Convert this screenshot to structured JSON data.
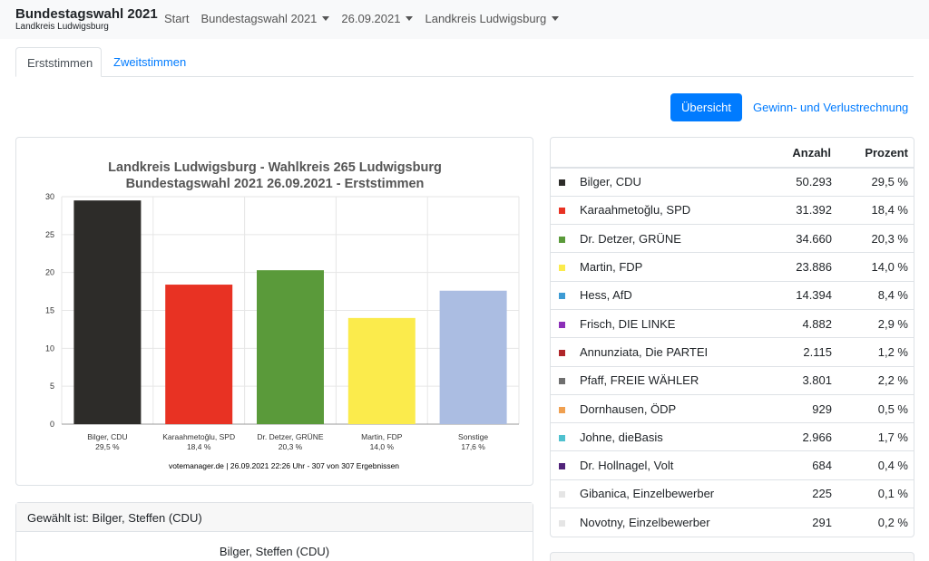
{
  "navbar": {
    "title": "Bundestagswahl 2021",
    "subtitle": "Landkreis Ludwigsburg",
    "items": [
      {
        "label": "Start",
        "dropdown": false
      },
      {
        "label": "Bundestagswahl 2021",
        "dropdown": true
      },
      {
        "label": "26.09.2021",
        "dropdown": true
      },
      {
        "label": "Landkreis Ludwigsburg",
        "dropdown": true
      }
    ]
  },
  "tabs": {
    "active": "Erststimmen",
    "other": "Zweitstimmen"
  },
  "actions": {
    "overview": "Übersicht",
    "gainloss": "Gewinn- und Verlustrechnung"
  },
  "chart_data": {
    "type": "bar",
    "title_line1": "Landkreis Ludwigsburg - Wahlkreis 265 Ludwigsburg",
    "title_line2": "Bundestagswahl 2021 26.09.2021  - Erststimmen",
    "categories": [
      "Bilger, CDU",
      "Karaahmetoğlu, SPD",
      "Dr. Detzer, GRÜNE",
      "Martin, FDP",
      "Sonstige"
    ],
    "value_labels": [
      "29,5 %",
      "18,4 %",
      "20,3 %",
      "14,0 %",
      "17,6 %"
    ],
    "values": [
      29.5,
      18.4,
      20.3,
      14.0,
      17.6
    ],
    "colors": [
      "#2d2c29",
      "#e83223",
      "#5a9a3a",
      "#fbeb4c",
      "#abbde2"
    ],
    "ylim": [
      0,
      30
    ],
    "yticks": [
      0,
      5,
      10,
      15,
      20,
      25,
      30
    ],
    "grid": true,
    "footer": "votemanager.de | 26.09.2021 22:26 Uhr - 307 von 307 Ergebnissen"
  },
  "elected": {
    "header": "Gewählt ist: Bilger, Steffen (CDU)",
    "name": "Bilger, Steffen (CDU)"
  },
  "results": {
    "headers": {
      "anzahl": "Anzahl",
      "prozent": "Prozent"
    },
    "rows": [
      {
        "name": "Bilger, CDU",
        "anzahl": "50.293",
        "prozent": "29,5 %",
        "color": "#2d2c29"
      },
      {
        "name": "Karaahmetoğlu, SPD",
        "anzahl": "31.392",
        "prozent": "18,4 %",
        "color": "#e83223"
      },
      {
        "name": "Dr. Detzer, GRÜNE",
        "anzahl": "34.660",
        "prozent": "20,3 %",
        "color": "#5a9a3a"
      },
      {
        "name": "Martin, FDP",
        "anzahl": "23.886",
        "prozent": "14,0 %",
        "color": "#fbeb4c"
      },
      {
        "name": "Hess, AfD",
        "anzahl": "14.394",
        "prozent": "8,4 %",
        "color": "#3d9bd4"
      },
      {
        "name": "Frisch, DIE LINKE",
        "anzahl": "4.882",
        "prozent": "2,9 %",
        "color": "#8c2fb8"
      },
      {
        "name": "Annunziata, Die PARTEI",
        "anzahl": "2.115",
        "prozent": "1,2 %",
        "color": "#b0262a"
      },
      {
        "name": "Pfaff, FREIE WÄHLER",
        "anzahl": "3.801",
        "prozent": "2,2 %",
        "color": "#6f6f6f"
      },
      {
        "name": "Dornhausen, ÖDP",
        "anzahl": "929",
        "prozent": "0,5 %",
        "color": "#f0a050"
      },
      {
        "name": "Johne, dieBasis",
        "anzahl": "2.966",
        "prozent": "1,7 %",
        "color": "#4fc1cf"
      },
      {
        "name": "Dr. Hollnagel, Volt",
        "anzahl": "684",
        "prozent": "0,4 %",
        "color": "#502379"
      },
      {
        "name": "Gibanica, Einzelbewerber",
        "anzahl": "225",
        "prozent": "0,1 %",
        "color": "#e5e5e5"
      },
      {
        "name": "Novotny, Einzelbewerber",
        "anzahl": "291",
        "prozent": "0,2 %",
        "color": "#e5e5e5"
      }
    ]
  }
}
